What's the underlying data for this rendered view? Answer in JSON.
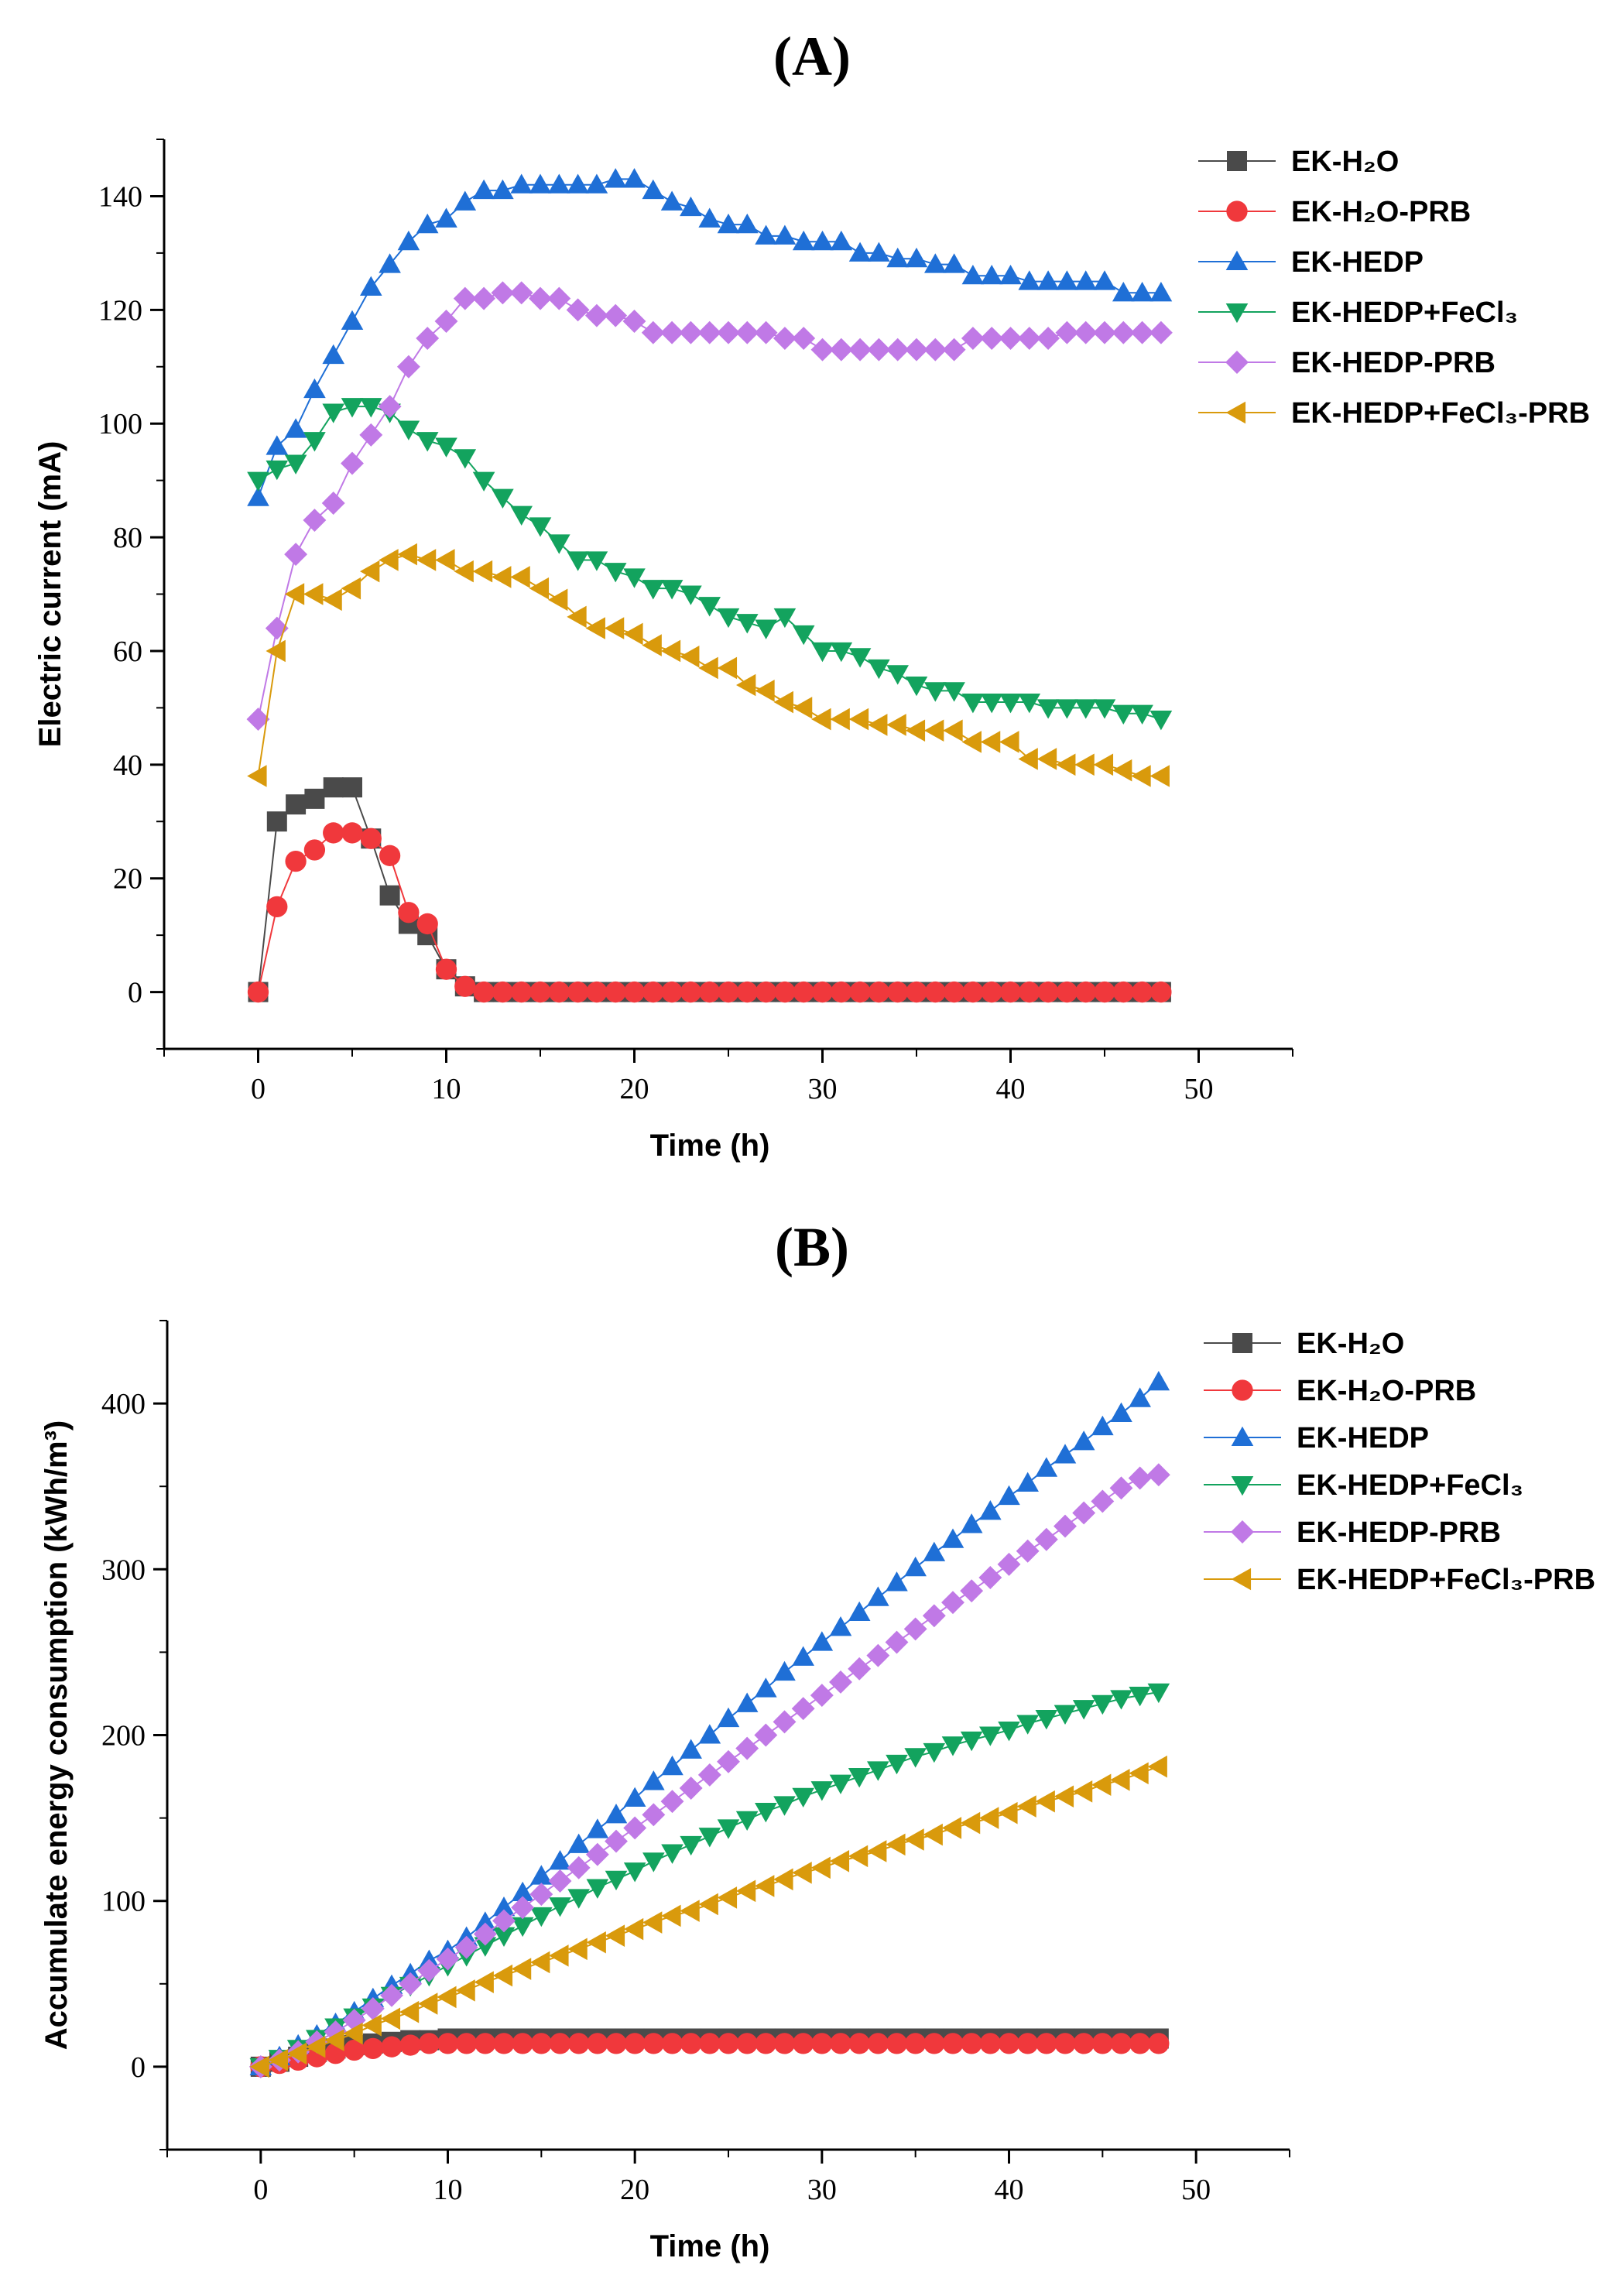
{
  "chart_data": [
    {
      "panel_label": "(A)",
      "type": "line",
      "xlabel": "Time (h)",
      "ylabel": "Electric current (mA)",
      "xlim": [
        -5,
        55
      ],
      "ylim": [
        -10,
        150
      ],
      "xticks": [
        "0",
        "10",
        "20",
        "30",
        "40",
        "50"
      ],
      "xtick_values": [
        0,
        10,
        20,
        30,
        40,
        50
      ],
      "yticks": [
        "0",
        "20",
        "40",
        "60",
        "80",
        "100",
        "120",
        "140"
      ],
      "ytick_values": [
        0,
        20,
        40,
        60,
        80,
        100,
        120,
        140
      ],
      "legend_position": "top-right",
      "x": [
        0,
        1,
        2,
        3,
        4,
        5,
        6,
        7,
        8,
        9,
        10,
        11,
        12,
        13,
        14,
        15,
        16,
        17,
        18,
        19,
        20,
        21,
        22,
        23,
        24,
        25,
        26,
        27,
        28,
        29,
        30,
        31,
        32,
        33,
        34,
        35,
        36,
        37,
        38,
        39,
        40,
        41,
        42,
        43,
        44,
        45,
        46,
        47,
        48
      ],
      "series": [
        {
          "name": "EK-H₂O",
          "color": "#4a4a4a",
          "marker": "square",
          "values": [
            0,
            30,
            33,
            34,
            36,
            36,
            27,
            17,
            12,
            10,
            4,
            1,
            0,
            0,
            0,
            0,
            0,
            0,
            0,
            0,
            0,
            0,
            0,
            0,
            0,
            0,
            0,
            0,
            0,
            0,
            0,
            0,
            0,
            0,
            0,
            0,
            0,
            0,
            0,
            0,
            0,
            0,
            0,
            0,
            0,
            0,
            0,
            0,
            0
          ]
        },
        {
          "name": "EK-H₂O-PRB",
          "color": "#f0383c",
          "marker": "circle",
          "values": [
            0,
            15,
            23,
            25,
            28,
            28,
            27,
            24,
            14,
            12,
            4,
            1,
            0,
            0,
            0,
            0,
            0,
            0,
            0,
            0,
            0,
            0,
            0,
            0,
            0,
            0,
            0,
            0,
            0,
            0,
            0,
            0,
            0,
            0,
            0,
            0,
            0,
            0,
            0,
            0,
            0,
            0,
            0,
            0,
            0,
            0,
            0,
            0,
            0
          ]
        },
        {
          "name": "EK-HEDP",
          "color": "#1f6fd6",
          "marker": "triangle-up",
          "values": [
            87,
            96,
            99,
            106,
            112,
            118,
            124,
            128,
            132,
            135,
            136,
            139,
            141,
            141,
            142,
            142,
            142,
            142,
            142,
            143,
            143,
            141,
            139,
            138,
            136,
            135,
            135,
            133,
            133,
            132,
            132,
            132,
            130,
            130,
            129,
            129,
            128,
            128,
            126,
            126,
            126,
            125,
            125,
            125,
            125,
            125,
            123,
            123,
            123
          ]
        },
        {
          "name": "EK-HEDP+FeCl₃",
          "color": "#13a35e",
          "marker": "triangle-down",
          "values": [
            90,
            92,
            93,
            97,
            102,
            103,
            103,
            102,
            99,
            97,
            96,
            94,
            90,
            87,
            84,
            82,
            79,
            76,
            76,
            74,
            73,
            71,
            71,
            70,
            68,
            66,
            65,
            64,
            66,
            63,
            60,
            60,
            59,
            57,
            56,
            54,
            53,
            53,
            51,
            51,
            51,
            51,
            50,
            50,
            50,
            50,
            49,
            49,
            48
          ]
        },
        {
          "name": "EK-HEDP-PRB",
          "color": "#c079e6",
          "marker": "diamond",
          "values": [
            48,
            64,
            77,
            83,
            86,
            93,
            98,
            103,
            110,
            115,
            118,
            122,
            122,
            123,
            123,
            122,
            122,
            120,
            119,
            119,
            118,
            116,
            116,
            116,
            116,
            116,
            116,
            116,
            115,
            115,
            113,
            113,
            113,
            113,
            113,
            113,
            113,
            113,
            115,
            115,
            115,
            115,
            115,
            116,
            116,
            116,
            116,
            116,
            116
          ]
        },
        {
          "name": "EK-HEDP+FeCl₃-PRB",
          "color": "#d99a0c",
          "marker": "triangle-left",
          "values": [
            38,
            60,
            70,
            70,
            69,
            71,
            74,
            76,
            77,
            76,
            76,
            74,
            74,
            73,
            73,
            71,
            69,
            66,
            64,
            64,
            63,
            61,
            60,
            59,
            57,
            57,
            54,
            53,
            51,
            50,
            48,
            48,
            48,
            47,
            47,
            46,
            46,
            46,
            44,
            44,
            44,
            41,
            41,
            40,
            40,
            40,
            39,
            38,
            38
          ]
        }
      ]
    },
    {
      "panel_label": "(B)",
      "type": "line",
      "xlabel": "Time (h)",
      "ylabel": "Accumulate energy consumption (kWh/m³)",
      "xlim": [
        -5,
        55
      ],
      "ylim": [
        -50,
        450
      ],
      "xticks": [
        "0",
        "10",
        "20",
        "30",
        "40",
        "50"
      ],
      "xtick_values": [
        0,
        10,
        20,
        30,
        40,
        50
      ],
      "yticks": [
        "0",
        "100",
        "200",
        "300",
        "400"
      ],
      "ytick_values": [
        0,
        100,
        200,
        300,
        400
      ],
      "legend_position": "top-right",
      "x": [
        0,
        1,
        2,
        3,
        4,
        5,
        6,
        7,
        8,
        9,
        10,
        11,
        12,
        13,
        14,
        15,
        16,
        17,
        18,
        19,
        20,
        21,
        22,
        23,
        24,
        25,
        26,
        27,
        28,
        29,
        30,
        31,
        32,
        33,
        34,
        35,
        36,
        37,
        38,
        39,
        40,
        41,
        42,
        43,
        44,
        45,
        46,
        47,
        48
      ],
      "series": [
        {
          "name": "EK-H₂O",
          "color": "#4a4a4a",
          "marker": "square",
          "values": [
            0,
            3,
            6,
            9,
            11,
            13,
            14,
            15,
            16,
            16,
            17,
            17,
            17,
            17,
            17,
            17,
            17,
            17,
            17,
            17,
            17,
            17,
            17,
            17,
            17,
            17,
            17,
            17,
            17,
            17,
            17,
            17,
            17,
            17,
            17,
            17,
            17,
            17,
            17,
            17,
            17,
            17,
            17,
            17,
            17,
            17,
            17,
            17,
            17
          ]
        },
        {
          "name": "EK-H₂O-PRB",
          "color": "#f0383c",
          "marker": "circle",
          "values": [
            0,
            2,
            4,
            6,
            8,
            10,
            11,
            12,
            13,
            14,
            14,
            14,
            14,
            14,
            14,
            14,
            14,
            14,
            14,
            14,
            14,
            14,
            14,
            14,
            14,
            14,
            14,
            14,
            14,
            14,
            14,
            14,
            14,
            14,
            14,
            14,
            14,
            14,
            14,
            14,
            14,
            14,
            14,
            14,
            14,
            14,
            14,
            14,
            14
          ]
        },
        {
          "name": "EK-HEDP",
          "color": "#1f6fd6",
          "marker": "triangle-up",
          "values": [
            0,
            6,
            13,
            19,
            26,
            33,
            41,
            49,
            56,
            64,
            70,
            78,
            87,
            96,
            105,
            115,
            124,
            134,
            143,
            152,
            162,
            172,
            181,
            191,
            200,
            210,
            219,
            228,
            238,
            247,
            256,
            265,
            274,
            283,
            292,
            301,
            310,
            318,
            327,
            335,
            344,
            352,
            361,
            369,
            377,
            386,
            394,
            403,
            413
          ]
        },
        {
          "name": "EK-HEDP+FeCl₃",
          "color": "#13a35e",
          "marker": "triangle-down",
          "values": [
            0,
            5,
            11,
            17,
            24,
            30,
            36,
            43,
            49,
            55,
            61,
            67,
            73,
            79,
            85,
            91,
            97,
            102,
            108,
            113,
            118,
            124,
            129,
            134,
            139,
            144,
            149,
            154,
            158,
            163,
            167,
            171,
            175,
            179,
            183,
            187,
            190,
            194,
            197,
            200,
            203,
            207,
            210,
            213,
            216,
            219,
            222,
            224,
            226
          ]
        },
        {
          "name": "EK-HEDP-PRB",
          "color": "#c079e6",
          "marker": "diamond",
          "values": [
            0,
            4,
            9,
            15,
            21,
            28,
            35,
            43,
            50,
            58,
            65,
            72,
            80,
            88,
            96,
            104,
            112,
            120,
            128,
            136,
            144,
            152,
            160,
            168,
            176,
            184,
            192,
            200,
            208,
            216,
            224,
            232,
            240,
            248,
            256,
            264,
            272,
            280,
            287,
            295,
            303,
            311,
            318,
            326,
            334,
            341,
            349,
            355,
            357
          ]
        },
        {
          "name": "EK-HEDP+FeCl₃-PRB",
          "color": "#d99a0c",
          "marker": "triangle-left",
          "values": [
            0,
            4,
            8,
            12,
            16,
            20,
            25,
            29,
            33,
            38,
            42,
            46,
            51,
            55,
            59,
            63,
            67,
            71,
            75,
            79,
            83,
            87,
            91,
            94,
            98,
            102,
            106,
            109,
            113,
            117,
            120,
            124,
            127,
            130,
            134,
            137,
            140,
            144,
            147,
            150,
            153,
            157,
            160,
            163,
            166,
            170,
            173,
            177,
            181
          ]
        }
      ]
    }
  ]
}
